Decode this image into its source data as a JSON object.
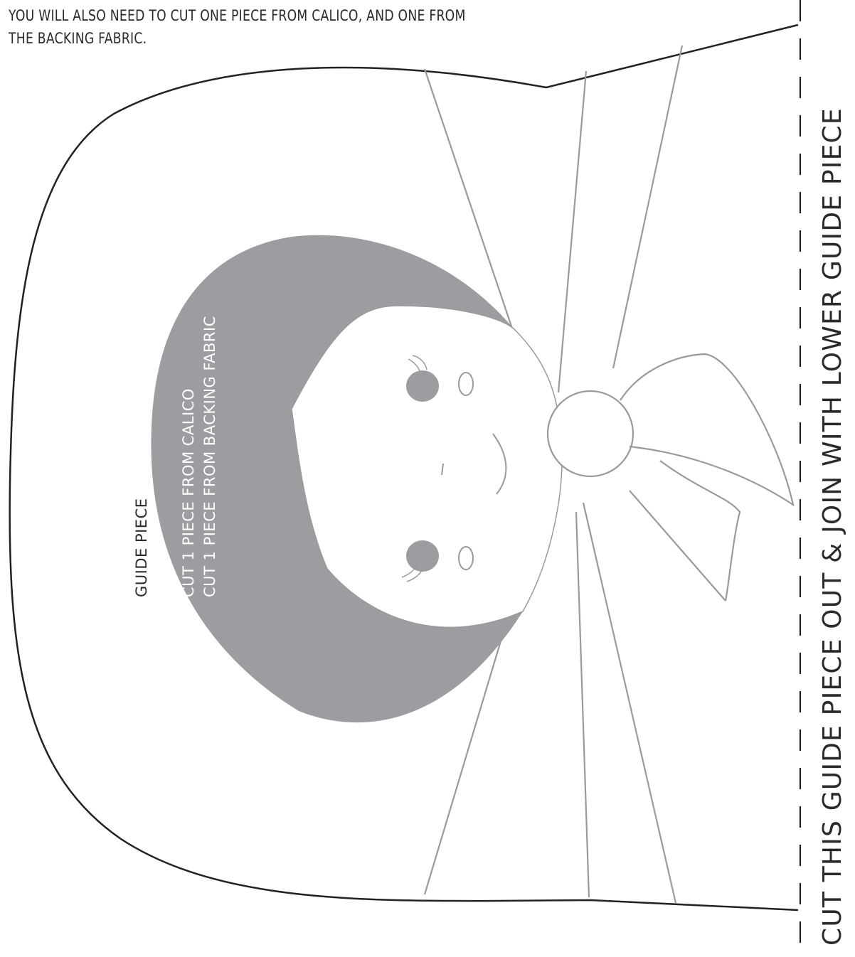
{
  "intro": {
    "line1": "YOU WILL ALSO NEED TO CUT ONE PIECE FROM CALICO, AND ONE FROM",
    "line2": "THE BACKING FABRIC."
  },
  "guide_piece": {
    "title": "GUIDE PIECE",
    "instruction1": "CUT 1 PIECE FROM CALICO",
    "instruction2": "CUT 1 PIECE FROM BACKING FABRIC"
  },
  "cut_line": {
    "label": "CUT THIS GUIDE PIECE OUT & JOIN WITH LOWER GUIDE PIECE"
  },
  "colors": {
    "outline": "#222222",
    "guide_lines": "#9a9a9a",
    "hair": "#9c9da1",
    "text": "#2a2a2a"
  }
}
